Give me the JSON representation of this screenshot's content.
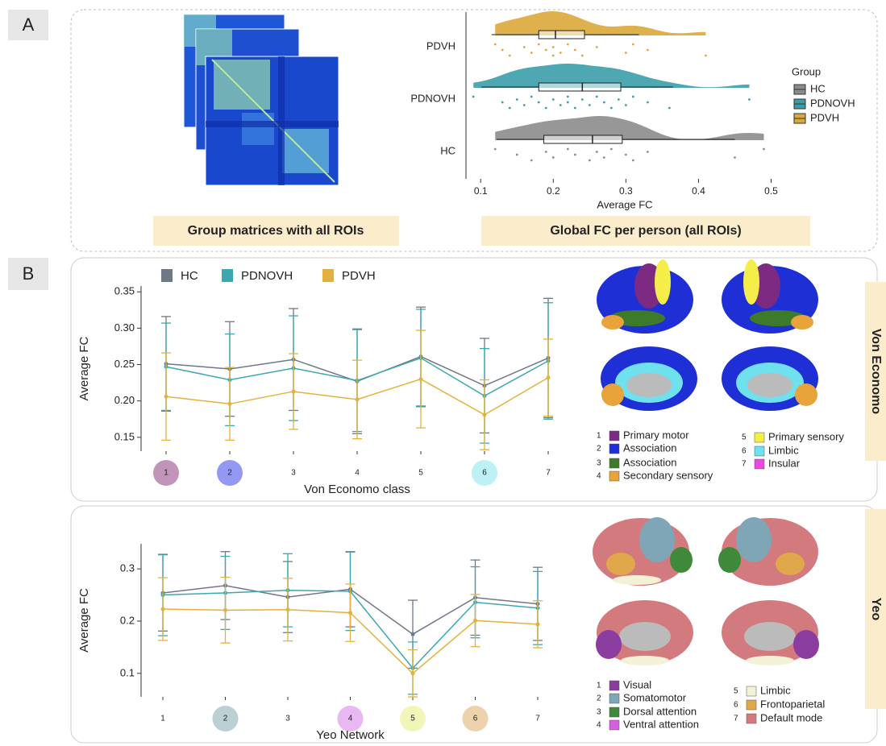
{
  "panel_a": {
    "label": "A",
    "matrix_caption": "Group matrices with all ROIs",
    "plot_caption": "Global FC per person (all ROIs)"
  },
  "panel_b": {
    "label": "B",
    "von_economo_title": "Von Economo",
    "yeo_title": "Yeo",
    "von_economo_legend": [
      {
        "number": 1,
        "name": "Primary motor",
        "color": "#7d2a82"
      },
      {
        "number": 2,
        "name": "Association",
        "color": "#1f2fd6"
      },
      {
        "number": 3,
        "name": "Association",
        "color": "#3d7a2a"
      },
      {
        "number": 4,
        "name": "Secondary sensory",
        "color": "#e8a33a"
      },
      {
        "number": 5,
        "name": "Primary sensory",
        "color": "#f5ee4a"
      },
      {
        "number": 6,
        "name": "Limbic",
        "color": "#6fe0ee"
      },
      {
        "number": 7,
        "name": "Insular",
        "color": "#e84ae0"
      }
    ],
    "yeo_legend": [
      {
        "number": 1,
        "name": "Visual",
        "color": "#8a3d9e"
      },
      {
        "number": 2,
        "name": "Somatomotor",
        "color": "#7fa6b6"
      },
      {
        "number": 3,
        "name": "Dorsal attention",
        "color": "#3f8a3a"
      },
      {
        "number": 4,
        "name": "Ventral attention",
        "color": "#d65ee0"
      },
      {
        "number": 5,
        "name": "Limbic",
        "color": "#f4f2d6"
      },
      {
        "number": 6,
        "name": "Frontoparietal",
        "color": "#e0a84a"
      },
      {
        "number": 7,
        "name": "Default mode",
        "color": "#d37a7e"
      }
    ]
  },
  "chart_data": [
    {
      "type": "raincloud",
      "xlabel": "Average FC",
      "categories": [
        "PDVH",
        "PDNOVH",
        "HC"
      ],
      "xlim": [
        0.082,
        0.515
      ],
      "xticks": [
        0.1,
        0.2,
        0.3,
        0.4,
        0.5
      ],
      "legend_title": "Group",
      "series": [
        {
          "name": "HC",
          "color": "#8c8c8c",
          "box": [
            0.122,
            0.187,
            0.254,
            0.295,
            0.45
          ],
          "points": [
            0.12,
            0.15,
            0.17,
            0.19,
            0.2,
            0.22,
            0.23,
            0.25,
            0.26,
            0.27,
            0.28,
            0.3,
            0.31,
            0.33,
            0.45,
            0.49
          ]
        },
        {
          "name": "PDNOVH",
          "color": "#3a9ea8",
          "box": [
            0.101,
            0.18,
            0.24,
            0.293,
            0.365
          ],
          "points": [
            0.09,
            0.13,
            0.14,
            0.15,
            0.16,
            0.17,
            0.18,
            0.19,
            0.2,
            0.21,
            0.22,
            0.22,
            0.23,
            0.24,
            0.25,
            0.26,
            0.27,
            0.28,
            0.29,
            0.3,
            0.31,
            0.33,
            0.36,
            0.47
          ]
        },
        {
          "name": "PDVH",
          "color": "#dca93a",
          "box": [
            0.115,
            0.18,
            0.203,
            0.243,
            0.318
          ],
          "points": [
            0.12,
            0.13,
            0.14,
            0.16,
            0.17,
            0.18,
            0.19,
            0.2,
            0.2,
            0.21,
            0.22,
            0.23,
            0.24,
            0.26,
            0.3,
            0.31,
            0.33,
            0.41
          ]
        }
      ]
    },
    {
      "type": "line-errorbar",
      "xlabel": "Von Economo class",
      "ylabel": "Average FC",
      "categories": [
        "1",
        "2",
        "3",
        "4",
        "5",
        "6",
        "7"
      ],
      "highlight_colors": [
        "#b07aa8",
        "#7a7ef0",
        null,
        null,
        null,
        "#aeeef2",
        null
      ],
      "ylim": [
        0.131,
        0.358
      ],
      "yticks": [
        0.15,
        {
          "value": 0.2,
          "label": "0.20"
        },
        0.25,
        {
          "value": 0.3,
          "label": "0.30"
        },
        0.35
      ],
      "legend": true,
      "series": [
        {
          "name": "HC",
          "color": "#6f7887",
          "values": [
            0.251,
            0.244,
            0.257,
            0.227,
            0.261,
            0.221,
            0.259
          ],
          "errors": [
            0.065,
            0.065,
            0.07,
            0.072,
            0.068,
            0.065,
            0.082
          ]
        },
        {
          "name": "PDNOVH",
          "color": "#3aa8b0",
          "values": [
            0.247,
            0.229,
            0.245,
            0.228,
            0.259,
            0.207,
            0.255
          ],
          "errors": [
            0.06,
            0.063,
            0.072,
            0.07,
            0.067,
            0.065,
            0.08
          ]
        },
        {
          "name": "PDVH",
          "color": "#e3b23c",
          "values": [
            0.206,
            0.196,
            0.213,
            0.202,
            0.23,
            0.181,
            0.232
          ],
          "errors": [
            0.06,
            0.05,
            0.052,
            0.054,
            0.067,
            0.048,
            0.053
          ]
        }
      ]
    },
    {
      "type": "line-errorbar",
      "xlabel": "Yeo Network",
      "ylabel": "Average FC",
      "categories": [
        "1",
        "2",
        "3",
        "4",
        "5",
        "6",
        "7"
      ],
      "highlight_colors": [
        null,
        "#a9c4c8",
        null,
        "#e4a5ee",
        "#eef2a6",
        "#e8c896",
        null
      ],
      "ylim": [
        0.055,
        0.348
      ],
      "yticks": [
        0.1,
        0.2,
        0.3
      ],
      "legend": false,
      "series": [
        {
          "name": "HC",
          "color": "#6f7887",
          "values": [
            0.254,
            0.268,
            0.246,
            0.261,
            0.175,
            0.245,
            0.233
          ],
          "errors": [
            0.073,
            0.065,
            0.068,
            0.072,
            0.065,
            0.072,
            0.07
          ]
        },
        {
          "name": "PDNOVH",
          "color": "#3aa8b0",
          "values": [
            0.25,
            0.254,
            0.259,
            0.257,
            0.11,
            0.236,
            0.225
          ],
          "errors": [
            0.078,
            0.07,
            0.07,
            0.075,
            0.05,
            0.068,
            0.07
          ]
        },
        {
          "name": "PDVH",
          "color": "#e3b23c",
          "values": [
            0.223,
            0.221,
            0.222,
            0.216,
            0.1,
            0.201,
            0.194
          ],
          "errors": [
            0.06,
            0.063,
            0.06,
            0.055,
            0.045,
            0.05,
            0.045
          ]
        }
      ]
    }
  ]
}
